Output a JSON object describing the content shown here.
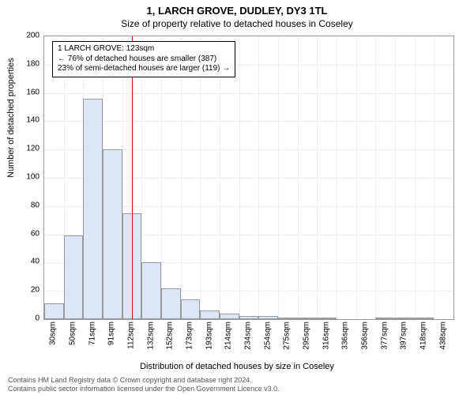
{
  "title": "1, LARCH GROVE, DUDLEY, DY3 1TL",
  "subtitle": "Size of property relative to detached houses in Coseley",
  "x_axis_label": "Distribution of detached houses by size in Coseley",
  "y_axis_label": "Number of detached properties",
  "annotation": {
    "line1": "1 LARCH GROVE: 123sqm",
    "line2": "← 76% of detached houses are smaller (387)",
    "line3": "23% of semi-detached houses are larger (119) →"
  },
  "footer_line1": "Contains HM Land Registry data © Crown copyright and database right 2024.",
  "footer_line2": "Contains public sector information licensed under the Open Government Licence v3.0.",
  "chart": {
    "type": "histogram",
    "ylim": [
      0,
      200
    ],
    "ytick_step": 20,
    "x_categories": [
      "30sqm",
      "50sqm",
      "71sqm",
      "91sqm",
      "112sqm",
      "132sqm",
      "152sqm",
      "173sqm",
      "193sqm",
      "214sqm",
      "234sqm",
      "254sqm",
      "275sqm",
      "295sqm",
      "316sqm",
      "336sqm",
      "356sqm",
      "377sqm",
      "397sqm",
      "418sqm",
      "438sqm"
    ],
    "values": [
      11,
      59,
      156,
      120,
      75,
      40,
      22,
      14,
      6,
      4,
      2,
      2,
      1,
      1,
      1,
      0,
      0,
      1,
      1,
      1,
      0
    ],
    "bar_fill": "#dce6f5",
    "bar_border": "#999999",
    "grid_color": "#eeeeee",
    "reference_line_color": "#cc0000",
    "reference_x_index": 4.5,
    "background": "#ffffff",
    "title_fontsize": 13,
    "label_fontsize": 11,
    "tick_fontsize": 10
  }
}
